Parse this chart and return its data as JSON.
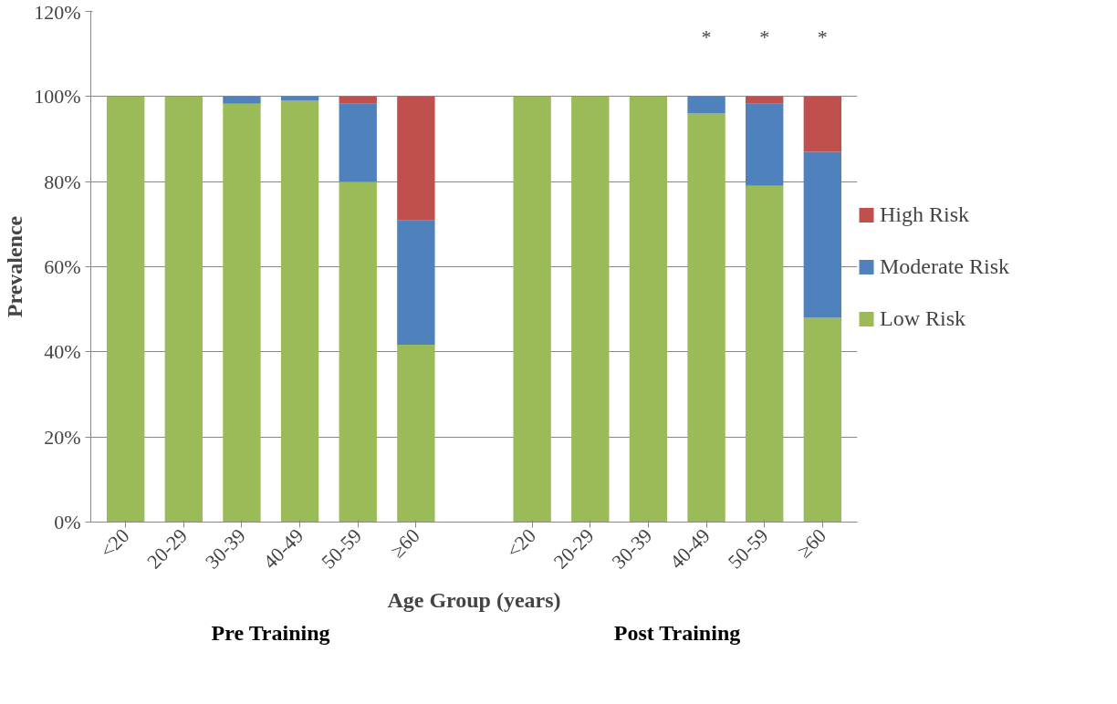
{
  "chart_data": {
    "type": "bar",
    "stacked": true,
    "xlabel": "Age Group (years)",
    "ylabel": "Prevalence",
    "categories": [
      "<20",
      "20-29",
      "30-39",
      "40-49",
      "50-59",
      "≥60",
      null,
      "<20",
      "20-29",
      "30-39",
      "40-49",
      "50-59",
      "≥60"
    ],
    "series": [
      {
        "name": "Low Risk",
        "color": "#9bbb59",
        "values": [
          100,
          100,
          98.3,
          99,
          80,
          41.7,
          null,
          100,
          100,
          100,
          96,
          79,
          48
        ]
      },
      {
        "name": "Moderate Risk",
        "color": "#4f81bd",
        "values": [
          0,
          0,
          1.7,
          1,
          18.3,
          29.2,
          null,
          0,
          0,
          0,
          4,
          19.3,
          39
        ]
      },
      {
        "name": "High Risk",
        "color": "#c0504d",
        "values": [
          0,
          0,
          0,
          0,
          1.7,
          29.1,
          null,
          0,
          0,
          0,
          0,
          1.7,
          13
        ]
      }
    ],
    "ylim": [
      0,
      120
    ],
    "yticks": [
      {
        "value": 0,
        "label": "0%"
      },
      {
        "value": 20,
        "label": "20%"
      },
      {
        "value": 40,
        "label": "40%"
      },
      {
        "value": 60,
        "label": "60%"
      },
      {
        "value": 80,
        "label": "80%"
      },
      {
        "value": 100,
        "label": "100%"
      },
      {
        "value": 120,
        "label": "120%"
      }
    ],
    "grid": "y",
    "legend": "right",
    "annotations": [
      "*",
      "*",
      "*",
      "Pre Training",
      "Post Training"
    ]
  }
}
